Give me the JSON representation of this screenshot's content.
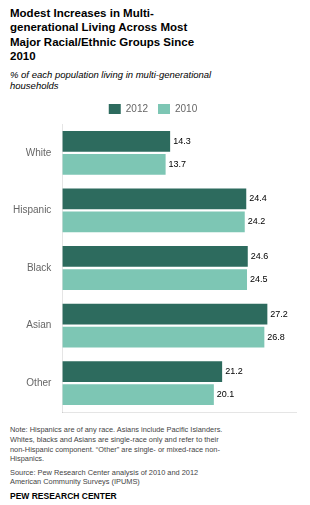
{
  "chart_data": {
    "type": "bar",
    "orientation": "horizontal",
    "title": "Modest Increases in Multi-\ngenerational Living Across Most\nMajor Racial/Ethnic Groups Since\n2010",
    "subtitle": "% of each population living in multi-generational\nhouseholds",
    "note": "Note: Hispanics are of any race. Asians include Pacific Islanders.\nWhites, blacks and Asians are single-race only and refer to their\nnon-Hispanic component. “Other” are single- or mixed-race non-\nHispanics.",
    "source": "Source: Pew Research Center analysis of 2010 and 2012\nAmerican Community Surveys  (IPUMS)",
    "footer": "PEW RESEARCH CENTER",
    "categories": [
      "White",
      "Hispanic",
      "Black",
      "Asian",
      "Other"
    ],
    "series": [
      {
        "name": "2012",
        "color": "#2d6b5e",
        "values": [
          14.3,
          24.4,
          24.6,
          27.2,
          21.2
        ]
      },
      {
        "name": "2010",
        "color": "#7dc6b4",
        "values": [
          13.7,
          24.2,
          24.5,
          26.8,
          20.1
        ]
      }
    ],
    "xlim": [
      0,
      31
    ],
    "grid": false,
    "legend": "top",
    "data_labels": true,
    "tick_labels": "y"
  }
}
